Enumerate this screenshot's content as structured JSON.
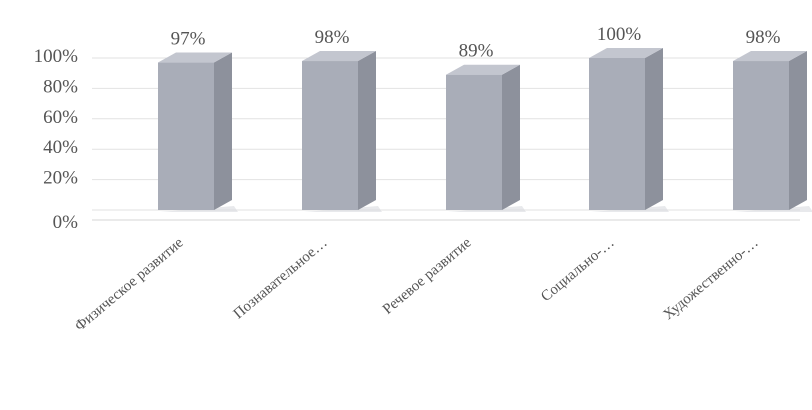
{
  "chart_data": {
    "type": "bar",
    "style": "3d-column",
    "title": "",
    "xlabel": "",
    "ylabel": "",
    "categories": [
      "Физическое развитие",
      "Познавательное…",
      "Речевое развитие",
      "Социально-…",
      "Художественно-…"
    ],
    "values": [
      97,
      98,
      89,
      100,
      98
    ],
    "data_labels": [
      "97%",
      "98%",
      "89%",
      "100%",
      "98%"
    ],
    "ylim": [
      0,
      100
    ],
    "y_ticks": [
      "0%",
      "20%",
      "40%",
      "60%",
      "80%",
      "100%"
    ],
    "grid": true,
    "legend": "none",
    "colors": {
      "bar_front": "#a9adb8",
      "bar_side": "#8d919c",
      "bar_top": "#c3c6cf",
      "bar_shadow": "#9ea2ad",
      "text": "#555555",
      "grid": "#e2e2e2"
    }
  }
}
